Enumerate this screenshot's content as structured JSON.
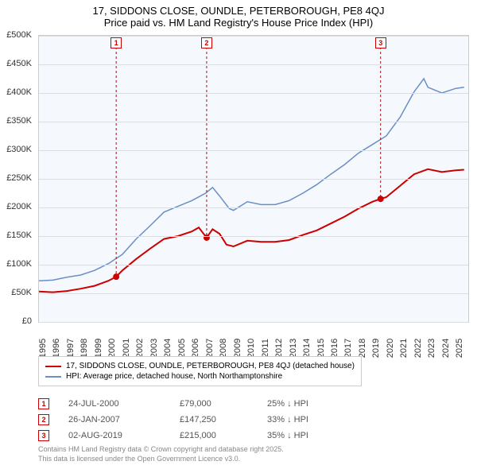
{
  "title": {
    "line1": "17, SIDDONS CLOSE, OUNDLE, PETERBOROUGH, PE8 4QJ",
    "line2": "Price paid vs. HM Land Registry's House Price Index (HPI)",
    "fontsize": 13,
    "color": "#000000"
  },
  "chart": {
    "type": "line",
    "background": "#f5f8fc",
    "border_color": "#cccccc",
    "grid_color": "#dddddd",
    "xlim": [
      1995,
      2025.9
    ],
    "ylim": [
      0,
      500000
    ],
    "ytick_step": 50000,
    "y_ticks": [
      "£0",
      "£50K",
      "£100K",
      "£150K",
      "£200K",
      "£250K",
      "£300K",
      "£350K",
      "£400K",
      "£450K",
      "£500K"
    ],
    "x_ticks": [
      "1995",
      "1996",
      "1997",
      "1998",
      "1999",
      "2000",
      "2001",
      "2002",
      "2003",
      "2004",
      "2005",
      "2006",
      "2007",
      "2008",
      "2009",
      "2010",
      "2011",
      "2012",
      "2013",
      "2014",
      "2015",
      "2016",
      "2017",
      "2018",
      "2019",
      "2020",
      "2021",
      "2022",
      "2023",
      "2024",
      "2025"
    ],
    "label_fontsize": 11,
    "label_color": "#333333",
    "series": {
      "price_paid": {
        "color": "#cc0000",
        "line_width": 2,
        "label": "17, SIDDONS CLOSE, OUNDLE, PETERBOROUGH, PE8 4QJ (detached house)",
        "points": [
          [
            1995,
            53000
          ],
          [
            1996,
            52000
          ],
          [
            1997,
            54000
          ],
          [
            1998,
            58000
          ],
          [
            1999,
            63000
          ],
          [
            2000,
            72000
          ],
          [
            2000.56,
            79000
          ],
          [
            2001,
            90000
          ],
          [
            2002,
            110000
          ],
          [
            2003,
            128000
          ],
          [
            2004,
            145000
          ],
          [
            2005,
            150000
          ],
          [
            2006,
            158000
          ],
          [
            2006.5,
            165000
          ],
          [
            2007.07,
            147250
          ],
          [
            2007.5,
            162000
          ],
          [
            2008,
            154000
          ],
          [
            2008.5,
            135000
          ],
          [
            2009,
            132000
          ],
          [
            2010,
            142000
          ],
          [
            2011,
            140000
          ],
          [
            2012,
            140000
          ],
          [
            2013,
            143000
          ],
          [
            2014,
            152000
          ],
          [
            2015,
            160000
          ],
          [
            2016,
            172000
          ],
          [
            2017,
            184000
          ],
          [
            2018,
            198000
          ],
          [
            2019,
            210000
          ],
          [
            2019.59,
            215000
          ],
          [
            2020,
            218000
          ],
          [
            2021,
            238000
          ],
          [
            2022,
            258000
          ],
          [
            2023,
            267000
          ],
          [
            2024,
            262000
          ],
          [
            2025,
            265000
          ],
          [
            2025.6,
            266000
          ]
        ]
      },
      "hpi": {
        "color": "#6a8fc5",
        "line_width": 1.5,
        "label": "HPI: Average price, detached house, North Northamptonshire",
        "points": [
          [
            1995,
            72000
          ],
          [
            1996,
            73000
          ],
          [
            1997,
            78000
          ],
          [
            1998,
            82000
          ],
          [
            1999,
            90000
          ],
          [
            2000,
            102000
          ],
          [
            2001,
            118000
          ],
          [
            2002,
            145000
          ],
          [
            2003,
            168000
          ],
          [
            2004,
            192000
          ],
          [
            2005,
            202000
          ],
          [
            2006,
            212000
          ],
          [
            2007,
            225000
          ],
          [
            2007.5,
            235000
          ],
          [
            2008,
            220000
          ],
          [
            2008.7,
            198000
          ],
          [
            2009,
            195000
          ],
          [
            2010,
            210000
          ],
          [
            2011,
            205000
          ],
          [
            2012,
            205000
          ],
          [
            2013,
            212000
          ],
          [
            2014,
            225000
          ],
          [
            2015,
            240000
          ],
          [
            2016,
            258000
          ],
          [
            2017,
            275000
          ],
          [
            2018,
            295000
          ],
          [
            2019,
            310000
          ],
          [
            2020,
            325000
          ],
          [
            2021,
            358000
          ],
          [
            2022,
            402000
          ],
          [
            2022.7,
            425000
          ],
          [
            2023,
            410000
          ],
          [
            2024,
            400000
          ],
          [
            2025,
            408000
          ],
          [
            2025.6,
            410000
          ]
        ]
      }
    },
    "markers": [
      {
        "id": "1",
        "x": 2000.56,
        "y": 79000,
        "color": "#cc0000"
      },
      {
        "id": "2",
        "x": 2007.07,
        "y": 147250,
        "color": "#cc0000"
      },
      {
        "id": "3",
        "x": 2019.59,
        "y": 215000,
        "color": "#cc0000"
      }
    ]
  },
  "legend": {
    "item1_label": "17, SIDDONS CLOSE, OUNDLE, PETERBOROUGH, PE8 4QJ (detached house)",
    "item1_color": "#cc0000",
    "item2_label": "HPI: Average price, detached house, North Northamptonshire",
    "item2_color": "#6a8fc5",
    "fontsize": 10
  },
  "sales": [
    {
      "marker": "1",
      "date": "24-JUL-2000",
      "price": "£79,000",
      "diff": "25% ↓ HPI",
      "color": "#cc0000"
    },
    {
      "marker": "2",
      "date": "26-JAN-2007",
      "price": "£147,250",
      "diff": "33% ↓ HPI",
      "color": "#cc0000"
    },
    {
      "marker": "3",
      "date": "02-AUG-2019",
      "price": "£215,000",
      "diff": "35% ↓ HPI",
      "color": "#cc0000"
    }
  ],
  "footer": {
    "line1": "Contains HM Land Registry data © Crown copyright and database right 2025.",
    "line2": "This data is licensed under the Open Government Licence v3.0.",
    "fontsize": 9,
    "color": "#888888"
  }
}
